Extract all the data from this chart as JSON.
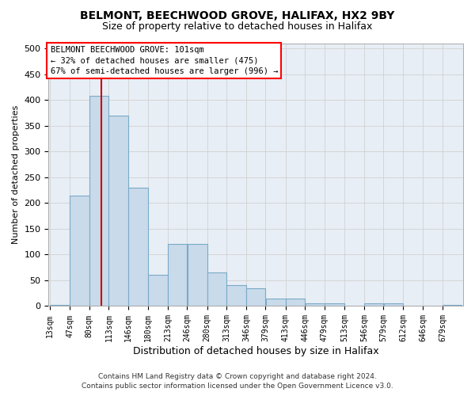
{
  "title": "BELMONT, BEECHWOOD GROVE, HALIFAX, HX2 9BY",
  "subtitle": "Size of property relative to detached houses in Halifax",
  "xlabel": "Distribution of detached houses by size in Halifax",
  "ylabel": "Number of detached properties",
  "footer_line1": "Contains HM Land Registry data © Crown copyright and database right 2024.",
  "footer_line2": "Contains public sector information licensed under the Open Government Licence v3.0.",
  "annotation_title": "BELMONT BEECHWOOD GROVE: 101sqm",
  "annotation_line2": "← 32% of detached houses are smaller (475)",
  "annotation_line3": "67% of semi-detached houses are larger (996) →",
  "bar_color": "#c9daea",
  "bar_edge_color": "#7aaac8",
  "vline_color": "#cc0000",
  "vline_x": 101,
  "categories": [
    "13sqm",
    "47sqm",
    "80sqm",
    "113sqm",
    "146sqm",
    "180sqm",
    "213sqm",
    "246sqm",
    "280sqm",
    "313sqm",
    "346sqm",
    "379sqm",
    "413sqm",
    "446sqm",
    "479sqm",
    "513sqm",
    "546sqm",
    "579sqm",
    "612sqm",
    "646sqm",
    "679sqm"
  ],
  "bin_edges": [
    13,
    47,
    80,
    113,
    146,
    180,
    213,
    246,
    280,
    313,
    346,
    379,
    413,
    446,
    479,
    513,
    546,
    579,
    612,
    646,
    679,
    712
  ],
  "bar_heights": [
    3,
    215,
    408,
    370,
    230,
    60,
    120,
    120,
    65,
    40,
    35,
    15,
    15,
    5,
    5,
    0,
    5,
    5,
    0,
    0,
    3
  ],
  "ylim": [
    0,
    510
  ],
  "yticks": [
    0,
    50,
    100,
    150,
    200,
    250,
    300,
    350,
    400,
    450,
    500
  ],
  "grid_color": "#cccccc",
  "background_color": "#ffffff",
  "plot_bg_color": "#e8eef5"
}
